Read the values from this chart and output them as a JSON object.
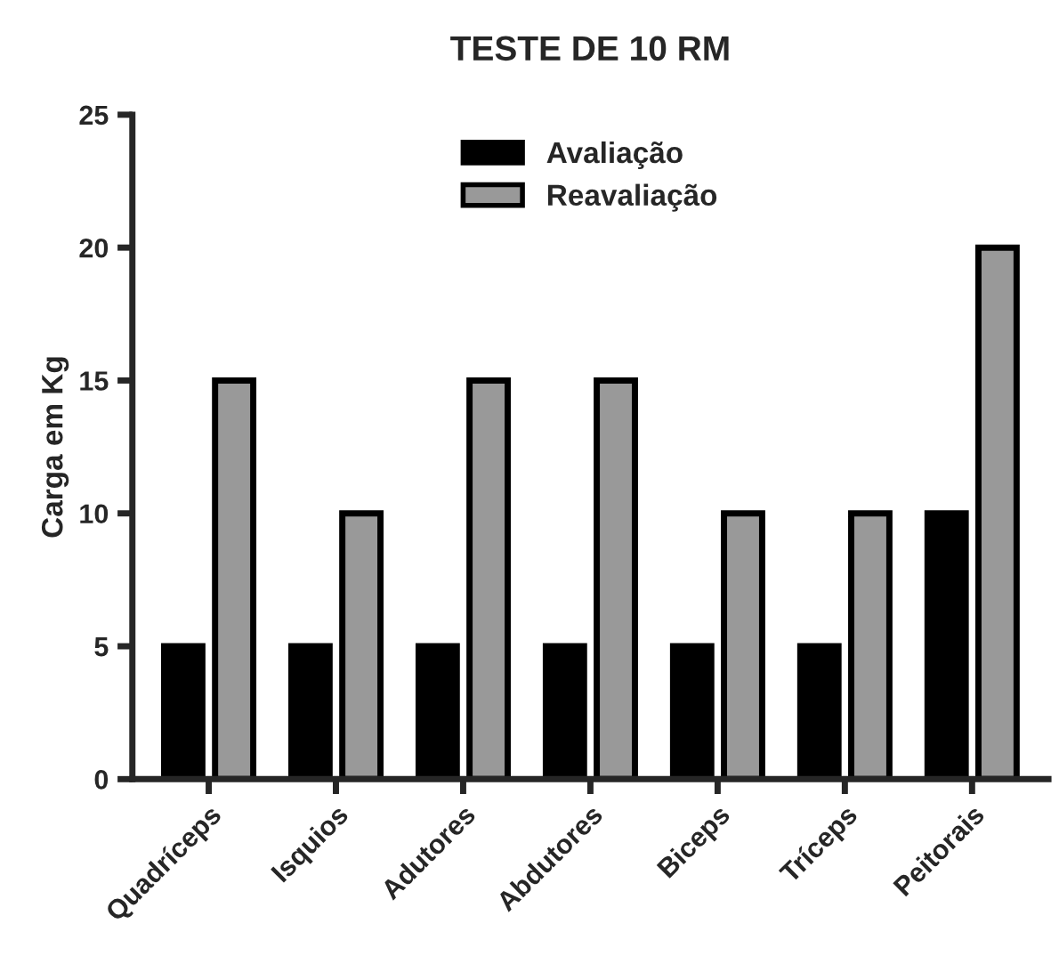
{
  "chart_data": {
    "type": "bar",
    "title": "TESTE DE 10 RM",
    "ylabel": "Carga em Kg",
    "categories": [
      "Quadríceps",
      "Isquios",
      "Adutores",
      "Abdutores",
      "Biceps",
      "Tríceps",
      "Peitorais"
    ],
    "series": [
      {
        "name": "Avaliação",
        "color": "#000000",
        "values": [
          5,
          5,
          5,
          5,
          5,
          5,
          10
        ]
      },
      {
        "name": "Reavaliação",
        "color": "#999999",
        "values": [
          15,
          10,
          15,
          15,
          10,
          10,
          20
        ]
      }
    ],
    "ylim": [
      0,
      25
    ],
    "yticks": [
      0,
      5,
      10,
      15,
      20,
      25
    ],
    "grid": false,
    "legend": "top"
  }
}
